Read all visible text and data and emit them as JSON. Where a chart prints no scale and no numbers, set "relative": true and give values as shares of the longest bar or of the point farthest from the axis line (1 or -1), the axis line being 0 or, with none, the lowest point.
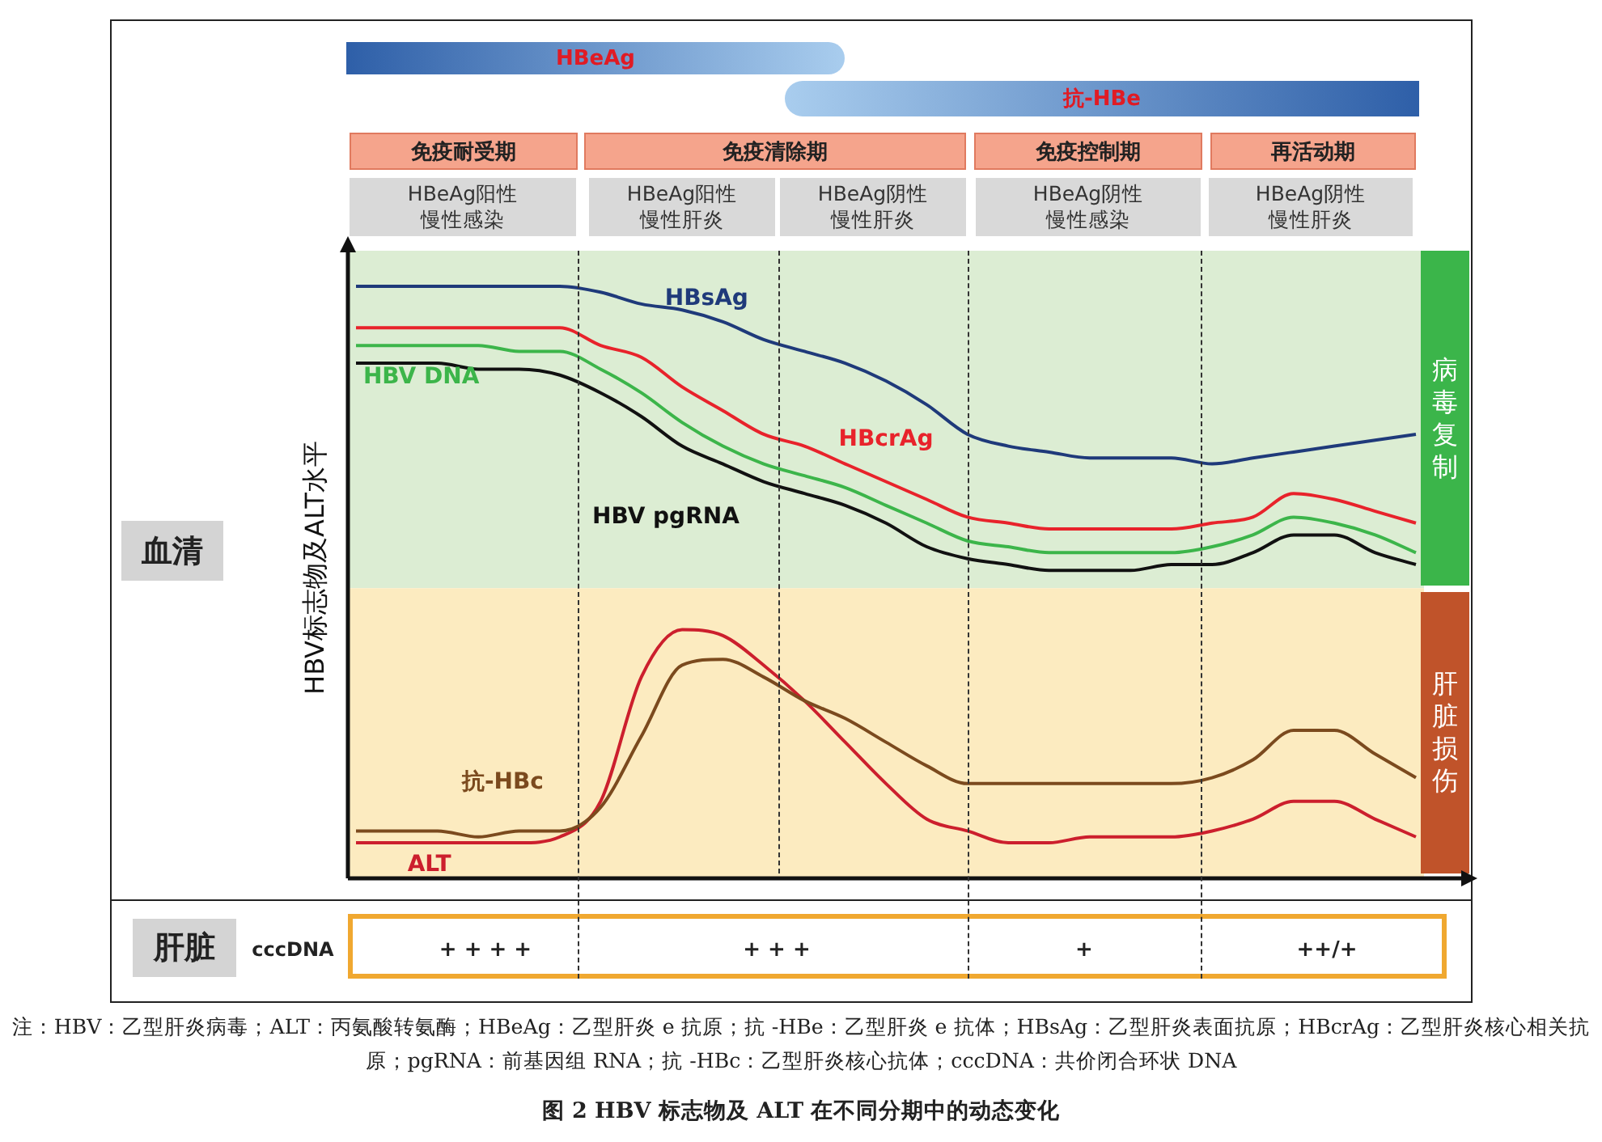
{
  "chart_data": {
    "type": "line",
    "relative": true,
    "title": "图 2  HBV 标志物及 ALT 在不同分期中的动态变化",
    "ylabel": "HBV标志物及ALT水平",
    "legend": false,
    "categories": [
      null,
      null,
      null,
      null,
      null,
      null,
      null,
      null,
      null,
      null,
      null,
      null,
      null,
      null,
      null,
      null,
      null,
      null,
      null,
      null,
      null,
      null,
      null,
      null,
      null,
      null,
      null
    ],
    "series": [
      {
        "name": "HBsAg",
        "color": "#1f3a7a",
        "values": [
          1,
          1,
          1,
          1,
          1,
          1,
          0.99,
          0.97,
          0.96,
          0.94,
          0.91,
          0.89,
          0.87,
          0.84,
          0.8,
          0.75,
          0.73,
          0.72,
          0.71,
          0.71,
          0.71,
          0.7,
          0.71,
          0.72,
          0.73,
          0.74,
          0.75
        ]
      },
      {
        "name": "HBcrAg",
        "color": "#e8232b",
        "values": [
          0.93,
          0.93,
          0.93,
          0.93,
          0.93,
          0.93,
          0.9,
          0.88,
          0.83,
          0.79,
          0.75,
          0.73,
          0.7,
          0.67,
          0.64,
          0.61,
          0.6,
          0.59,
          0.59,
          0.59,
          0.59,
          0.6,
          0.61,
          0.65,
          0.64,
          0.62,
          0.6
        ]
      },
      {
        "name": "HBV DNA",
        "color": "#3cb54a",
        "values": [
          0.9,
          0.9,
          0.9,
          0.9,
          0.89,
          0.89,
          0.86,
          0.82,
          0.77,
          0.73,
          0.7,
          0.68,
          0.66,
          0.63,
          0.6,
          0.57,
          0.56,
          0.55,
          0.55,
          0.55,
          0.55,
          0.56,
          0.58,
          0.61,
          0.6,
          0.58,
          0.55
        ]
      },
      {
        "name": "HBV pgRNA",
        "color": "#111111",
        "values": [
          0.87,
          0.87,
          0.87,
          0.86,
          0.86,
          0.85,
          0.82,
          0.78,
          0.73,
          0.7,
          0.67,
          0.65,
          0.63,
          0.6,
          0.56,
          0.54,
          0.53,
          0.52,
          0.52,
          0.52,
          0.53,
          0.53,
          0.55,
          0.58,
          0.58,
          0.55,
          0.53
        ]
      },
      {
        "name": "抗-HBc",
        "color": "#7b4a1e",
        "values": [
          0.08,
          0.08,
          0.08,
          0.07,
          0.08,
          0.08,
          0.12,
          0.24,
          0.36,
          0.37,
          0.34,
          0.3,
          0.27,
          0.23,
          0.19,
          0.16,
          0.16,
          0.16,
          0.16,
          0.16,
          0.16,
          0.17,
          0.2,
          0.25,
          0.25,
          0.21,
          0.17
        ]
      },
      {
        "name": "ALT",
        "color": "#cc1f2d",
        "values": [
          0.06,
          0.06,
          0.06,
          0.06,
          0.06,
          0.07,
          0.13,
          0.34,
          0.42,
          0.41,
          0.36,
          0.3,
          0.23,
          0.16,
          0.1,
          0.08,
          0.06,
          0.06,
          0.07,
          0.07,
          0.07,
          0.08,
          0.1,
          0.13,
          0.13,
          0.1,
          0.07
        ]
      }
    ],
    "bands": [
      {
        "axis": "y",
        "from": 0.49,
        "to": 1.06,
        "label": "病毒复制",
        "color": "#dcedd3"
      },
      {
        "axis": "y",
        "from": 0,
        "to": 0.49,
        "label": "肝脏损伤",
        "color": "#fcebc0"
      }
    ],
    "annotations": [
      "HBeAg",
      "抗-HBe",
      "免疫耐受期",
      "免疫清除期",
      "免疫控制期",
      "再活动期",
      "HBeAg阳性慢性感染",
      "HBeAg阳性慢性肝炎",
      "HBeAg阴性慢性肝炎",
      "HBeAg阴性慢性感染",
      "HBeAg阴性慢性肝炎",
      "血清",
      "肝脏",
      "cccDNA",
      "+ + + +",
      "+ + +",
      "+",
      "++/+",
      "注：HBV：乙型肝炎病毒；ALT：丙氨酸转氨酶；HBeAg：乙型肝炎 e 抗原；抗 -HBe：乙型肝炎 e 抗体；HBsAg：乙型肝炎表面抗原；HBcrAg：乙型肝炎核心相关抗原；pgRNA：前基因组 RNA；抗 -HBc：乙型肝炎核心抗体；cccDNA：共价闭合环状 DNA"
    ]
  }
}
